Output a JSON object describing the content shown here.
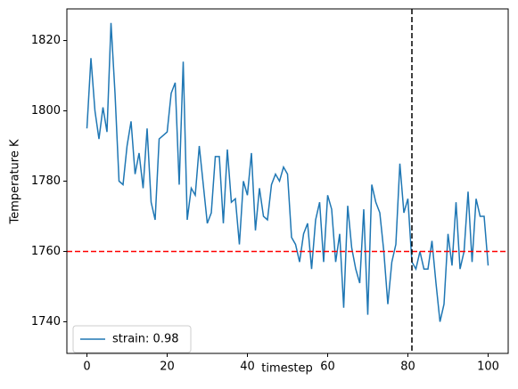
{
  "chart_data": {
    "type": "line",
    "x_label": "timestep",
    "y_label": "Temperature K",
    "x": [
      0,
      1,
      2,
      3,
      4,
      5,
      6,
      7,
      8,
      9,
      10,
      11,
      12,
      13,
      14,
      15,
      16,
      17,
      18,
      19,
      20,
      21,
      22,
      23,
      24,
      25,
      26,
      27,
      28,
      29,
      30,
      31,
      32,
      33,
      34,
      35,
      36,
      37,
      38,
      39,
      40,
      41,
      42,
      43,
      44,
      45,
      46,
      47,
      48,
      49,
      50,
      51,
      52,
      53,
      54,
      55,
      56,
      57,
      58,
      59,
      60,
      61,
      62,
      63,
      64,
      65,
      66,
      67,
      68,
      69,
      70,
      71,
      72,
      73,
      74,
      75,
      76,
      77,
      78,
      79,
      80,
      81,
      82,
      83,
      84,
      85,
      86,
      87,
      88,
      89,
      90,
      91,
      92,
      93,
      94,
      95,
      96,
      97,
      98,
      99,
      100
    ],
    "series": [
      {
        "name": "strain: 0.98",
        "color": "#1f77b4",
        "values": [
          1795,
          1815,
          1800,
          1792,
          1801,
          1794,
          1825,
          1805,
          1780,
          1779,
          1790,
          1797,
          1782,
          1788,
          1778,
          1795,
          1774,
          1769,
          1792,
          1793,
          1794,
          1805,
          1808,
          1779,
          1814,
          1769,
          1778,
          1776,
          1790,
          1779,
          1768,
          1771,
          1787,
          1787,
          1768,
          1789,
          1774,
          1775,
          1762,
          1780,
          1776,
          1788,
          1766,
          1778,
          1770,
          1769,
          1779,
          1782,
          1780,
          1784,
          1782,
          1764,
          1762,
          1757,
          1765,
          1768,
          1755,
          1769,
          1774,
          1757,
          1776,
          1772,
          1757,
          1765,
          1744,
          1773,
          1761,
          1755,
          1751,
          1772,
          1742,
          1779,
          1774,
          1771,
          1760,
          1745,
          1757,
          1762,
          1785,
          1771,
          1775,
          1757,
          1755,
          1760,
          1755,
          1755,
          1763,
          1751,
          1740,
          1745,
          1765,
          1756,
          1774,
          1755,
          1760,
          1777,
          1757,
          1775,
          1770,
          1770,
          1756
        ]
      }
    ],
    "xlim": [
      -5,
      105
    ],
    "ylim": [
      1731,
      1829
    ],
    "xticks": [
      0,
      20,
      40,
      60,
      80,
      100
    ],
    "yticks": [
      1740,
      1760,
      1780,
      1800,
      1820
    ],
    "hline": {
      "value": 1760,
      "color": "#ff0000"
    },
    "vline": {
      "value": 81,
      "color": "#000000"
    },
    "legend": "lower left"
  }
}
